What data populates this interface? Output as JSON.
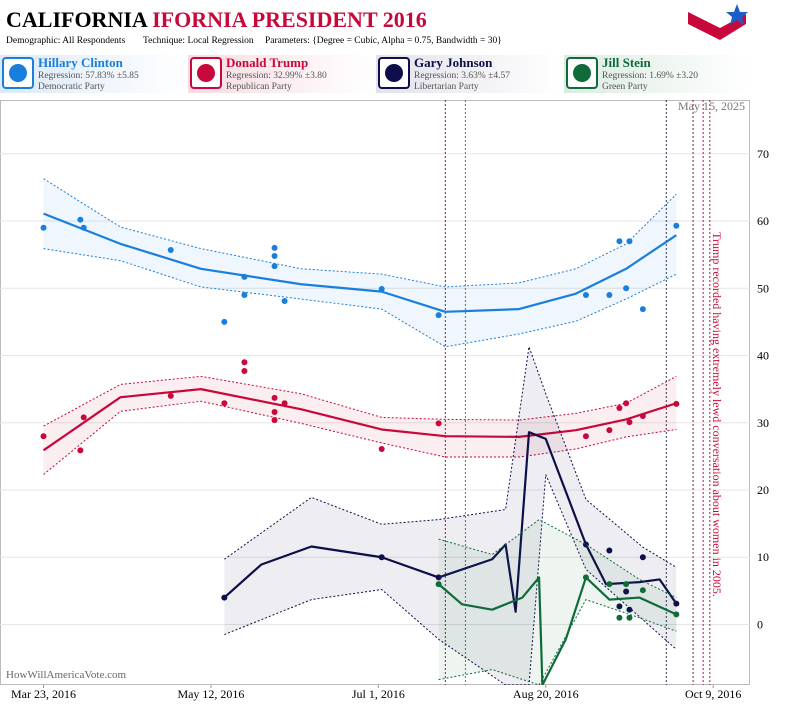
{
  "header": {
    "title_main": "CALIFORNIA",
    "title_rest": "IFORNIA PRESIDENT 2016",
    "meta": [
      "Demographic: All Respondents",
      "Technique: Local Regression",
      "Parameters: {Degree = Cubic, Alpha = 0.75, Bandwidth = 30}"
    ]
  },
  "chart_data": {
    "type": "scatter",
    "xlim": [
      "2016-03-10",
      "2016-10-20"
    ],
    "ylim": [
      -9,
      78
    ],
    "xticks": [
      {
        "value": "2016-03-23",
        "label": "Mar 23, 2016"
      },
      {
        "value": "2016-05-12",
        "label": "May 12, 2016"
      },
      {
        "value": "2016-07-01",
        "label": "Jul 1, 2016"
      },
      {
        "value": "2016-08-20",
        "label": "Aug 20, 2016"
      },
      {
        "value": "2016-10-09",
        "label": "Oct 9, 2016"
      }
    ],
    "yticks": [
      0,
      10,
      20,
      30,
      40,
      50,
      60,
      70
    ],
    "grid": true,
    "watermark": "HowWillAmericaVote.com",
    "date_stamp": "May 15, 2025",
    "events": [
      {
        "date": "2016-07-21",
        "color": "#8b1a4a"
      },
      {
        "date": "2016-07-27",
        "color": "#2a8a8a"
      },
      {
        "date": "2016-09-25",
        "color": "#333355"
      },
      {
        "date": "2016-10-03",
        "color": "#7a2a3a"
      },
      {
        "date": "2016-10-06",
        "color": "#c8083a"
      },
      {
        "date": "2016-10-08",
        "color": "#c8083a",
        "label": "Trump recorded having extremely lewd conversation about women in 2005."
      }
    ],
    "series": [
      {
        "name": "Hillary Clinton",
        "regression": "Regression: 57.83% ±5.85",
        "party": "Democratic Party",
        "color": "#1a7fdc",
        "tint": "#dbe9f8",
        "x": [
          "2016-03-23",
          "2016-04-03",
          "2016-04-04",
          "2016-04-30",
          "2016-05-16",
          "2016-05-22",
          "2016-05-22",
          "2016-05-31",
          "2016-05-31",
          "2016-05-31",
          "2016-06-03",
          "2016-07-02",
          "2016-07-19",
          "2016-09-01",
          "2016-09-08",
          "2016-09-11",
          "2016-09-14",
          "2016-09-13",
          "2016-09-18",
          "2016-09-28"
        ],
        "values": [
          59.0,
          60.2,
          59.0,
          55.7,
          45.0,
          51.7,
          49.0,
          56.0,
          54.8,
          53.3,
          48.1,
          49.9,
          46.0,
          49.0,
          49.0,
          57.0,
          57.0,
          50.0,
          46.9,
          59.3
        ],
        "fit_x": [
          "2016-03-23",
          "2016-04-15",
          "2016-05-09",
          "2016-06-08",
          "2016-07-02",
          "2016-07-21",
          "2016-08-12",
          "2016-08-29",
          "2016-09-13",
          "2016-09-28"
        ],
        "fit": [
          61.1,
          56.6,
          52.9,
          50.6,
          49.5,
          46.5,
          46.9,
          49.2,
          52.9,
          57.9
        ],
        "band_upper": [
          66.3,
          59.1,
          55.9,
          52.9,
          52.1,
          50.2,
          50.8,
          52.9,
          56.6,
          64.0
        ],
        "band_lower": [
          55.9,
          54.1,
          50.2,
          48.4,
          46.9,
          41.3,
          43.2,
          45.1,
          48.4,
          52.1
        ]
      },
      {
        "name": "Donald Trump",
        "regression": "Regression: 32.99% ±3.80",
        "party": "Republican Party",
        "color": "#c8083a",
        "tint": "#f6dbe2",
        "x": [
          "2016-03-23",
          "2016-04-03",
          "2016-04-04",
          "2016-04-30",
          "2016-05-16",
          "2016-05-22",
          "2016-05-22",
          "2016-05-31",
          "2016-05-31",
          "2016-05-31",
          "2016-06-03",
          "2016-07-02",
          "2016-07-19",
          "2016-09-01",
          "2016-09-08",
          "2016-09-11",
          "2016-09-13",
          "2016-09-14",
          "2016-09-18",
          "2016-09-28"
        ],
        "values": [
          28.0,
          25.9,
          30.8,
          34.0,
          32.9,
          39.0,
          37.7,
          33.7,
          31.6,
          30.4,
          32.9,
          26.1,
          29.9,
          28.0,
          28.9,
          32.2,
          32.9,
          30.1,
          31.0,
          32.8
        ],
        "fit_x": [
          "2016-03-23",
          "2016-04-15",
          "2016-05-09",
          "2016-06-08",
          "2016-07-02",
          "2016-07-21",
          "2016-08-12",
          "2016-08-29",
          "2016-09-13",
          "2016-09-28"
        ],
        "fit": [
          25.9,
          33.8,
          35.0,
          32.0,
          29.0,
          28.0,
          27.9,
          28.9,
          30.5,
          32.9
        ],
        "band_upper": [
          29.5,
          35.7,
          36.9,
          34.3,
          30.8,
          30.5,
          30.4,
          31.4,
          32.9,
          36.9
        ],
        "band_lower": [
          22.3,
          31.7,
          33.2,
          29.9,
          27.0,
          24.9,
          24.9,
          26.1,
          27.9,
          29.0
        ]
      },
      {
        "name": "Gary Johnson",
        "regression": "Regression: 3.63% ±4.57",
        "party": "Libertarian Party",
        "color": "#0e0e4a",
        "tint": "#e2e2ea",
        "x": [
          "2016-05-16",
          "2016-07-02",
          "2016-07-19",
          "2016-09-01",
          "2016-09-08",
          "2016-09-11",
          "2016-09-13",
          "2016-09-14",
          "2016-09-18",
          "2016-09-28"
        ],
        "values": [
          4.0,
          10.0,
          7.0,
          11.9,
          11.0,
          2.7,
          4.9,
          2.2,
          10.0,
          3.1
        ],
        "fit_x": [
          "2016-05-16",
          "2016-05-27",
          "2016-06-11",
          "2016-07-02",
          "2016-07-19",
          "2016-08-04",
          "2016-08-08",
          "2016-08-11",
          "2016-08-15",
          "2016-08-20",
          "2016-09-01",
          "2016-09-07",
          "2016-09-17",
          "2016-09-23",
          "2016-09-28"
        ],
        "fit": [
          4.0,
          8.9,
          11.6,
          10.0,
          7.0,
          9.7,
          11.9,
          1.9,
          28.6,
          27.6,
          11.9,
          6.0,
          6.3,
          6.7,
          3.1
        ],
        "band_x": [
          "2016-05-16",
          "2016-06-11",
          "2016-07-02",
          "2016-07-19",
          "2016-08-08",
          "2016-08-15",
          "2016-08-20",
          "2016-09-01",
          "2016-09-18",
          "2016-09-28"
        ],
        "band_upper": [
          9.7,
          18.9,
          14.9,
          15.6,
          17.1,
          41.3,
          34.3,
          18.6,
          11.5,
          8.5
        ],
        "band_lower": [
          -1.5,
          3.7,
          5.2,
          -2.2,
          -9,
          -9,
          22.3,
          8.2,
          0.7,
          -3.7
        ]
      },
      {
        "name": "Jill Stein",
        "regression": "Regression: 1.69% ±3.20",
        "party": "Green Party",
        "color": "#0f6b3a",
        "tint": "#dcebe2",
        "x": [
          "2016-07-19",
          "2016-09-01",
          "2016-09-08",
          "2016-09-11",
          "2016-09-13",
          "2016-09-14",
          "2016-09-18",
          "2016-09-28"
        ],
        "values": [
          6.0,
          7.0,
          6.0,
          1.0,
          6.0,
          1.0,
          5.1,
          1.5
        ],
        "fit_x": [
          "2016-07-19",
          "2016-07-26",
          "2016-08-04",
          "2016-08-13",
          "2016-08-18",
          "2016-08-19",
          "2016-08-26",
          "2016-09-01",
          "2016-09-08",
          "2016-09-17",
          "2016-09-28"
        ],
        "fit": [
          6.0,
          3.0,
          2.2,
          4.0,
          7.0,
          -9,
          -2.2,
          7.0,
          3.7,
          4.0,
          1.5
        ],
        "band_x": [
          "2016-07-19",
          "2016-08-04",
          "2016-08-18",
          "2016-09-01",
          "2016-09-17",
          "2016-09-28"
        ],
        "band_upper": [
          12.7,
          10.4,
          15.6,
          11.9,
          6.7,
          4.0
        ],
        "band_lower": [
          -8.2,
          -6.7,
          -9,
          3.7,
          1.0,
          -1.0
        ]
      }
    ]
  }
}
